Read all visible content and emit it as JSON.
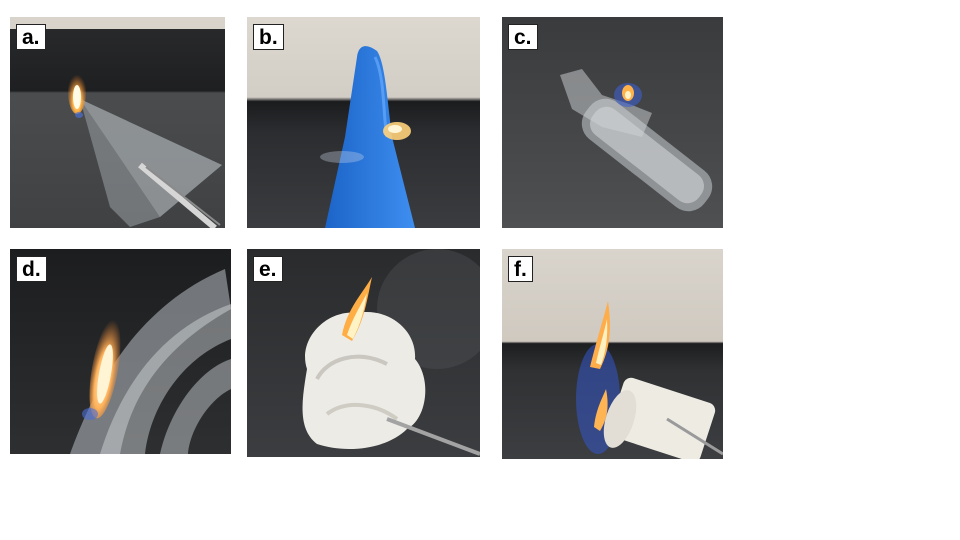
{
  "panels": [
    {
      "id": "a",
      "label": "a."
    },
    {
      "id": "b",
      "label": "b."
    },
    {
      "id": "c",
      "label": "c."
    },
    {
      "id": "d",
      "label": "d."
    },
    {
      "id": "e",
      "label": "e."
    },
    {
      "id": "f",
      "label": "f."
    }
  ]
}
